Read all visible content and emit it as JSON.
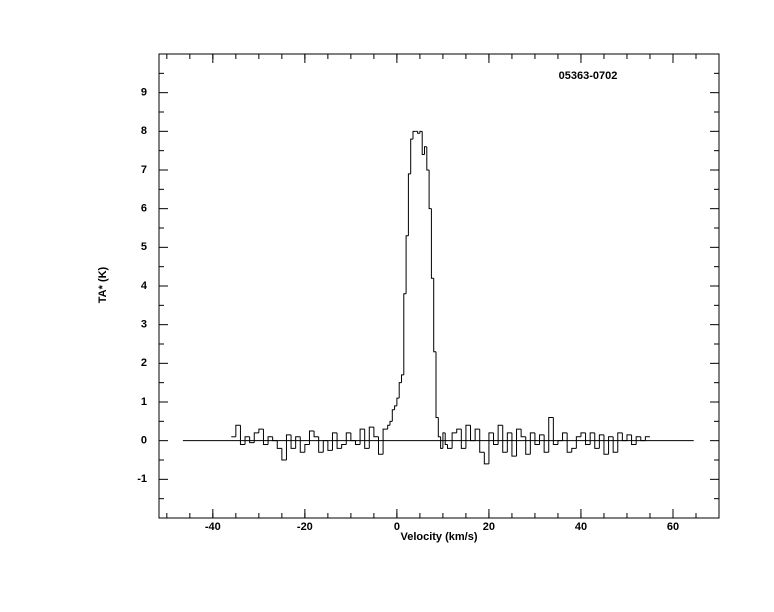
{
  "chart_data": {
    "type": "step",
    "title": "05363-0702",
    "x_label": "Velocity (km/s)",
    "y_label": "TA* (K)",
    "color": "#000000",
    "xlim": [
      -51.7,
      70
    ],
    "ylim": [
      -2,
      10
    ],
    "xticks": [
      -40,
      -20,
      0,
      20,
      40,
      60
    ],
    "yticks": [
      -1,
      0,
      1,
      2,
      3,
      4,
      5,
      6,
      7,
      8,
      9
    ],
    "baseline": {
      "x": [
        -46.5,
        64.5
      ],
      "y": 0
    },
    "x": [
      -36,
      -35,
      -34,
      -33,
      -32,
      -31,
      -30,
      -29,
      -28,
      -27,
      -26,
      -25,
      -24,
      -23,
      -22,
      -21,
      -20,
      -19,
      -18,
      -17,
      -16,
      -15,
      -14,
      -13,
      -12,
      -11,
      -10,
      -9,
      -8,
      -7,
      -6,
      -5,
      -4,
      -3,
      -2,
      -1.5,
      -1,
      -0.5,
      0,
      0.5,
      1,
      1.5,
      2,
      2.5,
      3,
      3.5,
      4,
      4.5,
      5,
      5.5,
      6,
      6.5,
      7,
      7.5,
      8,
      8.5,
      9,
      9.5,
      10,
      10.5,
      11,
      12,
      13,
      14,
      15,
      16,
      17,
      18,
      19,
      20,
      21,
      22,
      23,
      24,
      25,
      26,
      27,
      28,
      29,
      30,
      31,
      32,
      33,
      34,
      35,
      36,
      37,
      38,
      39,
      40,
      41,
      42,
      43,
      44,
      45,
      46,
      47,
      48,
      49,
      50,
      51,
      52,
      53,
      54
    ],
    "values": [
      0.1,
      0.4,
      -0.1,
      0.1,
      -0.05,
      0.2,
      0.3,
      -0.1,
      0.1,
      0.0,
      -0.2,
      -0.5,
      0.15,
      -0.2,
      0.1,
      -0.3,
      -0.1,
      0.25,
      0.1,
      -0.3,
      0.0,
      -0.25,
      0.2,
      -0.2,
      -0.1,
      0.2,
      0.0,
      -0.1,
      0.3,
      -0.2,
      0.35,
      0.1,
      -0.35,
      0.3,
      0.4,
      0.5,
      0.8,
      0.9,
      1.1,
      1.5,
      1.7,
      3.8,
      5.3,
      6.9,
      7.8,
      8.0,
      8.0,
      7.95,
      8.0,
      7.4,
      7.6,
      7.0,
      6.0,
      4.2,
      2.3,
      0.6,
      0.1,
      -0.2,
      0.2,
      -0.1,
      -0.2,
      0.2,
      0.3,
      -0.2,
      0.4,
      0.0,
      0.3,
      -0.3,
      -0.6,
      0.2,
      -0.1,
      0.4,
      -0.3,
      0.2,
      -0.4,
      0.3,
      0.1,
      -0.35,
      0.2,
      -0.1,
      0.15,
      -0.3,
      0.6,
      -0.1,
      0.0,
      0.2,
      -0.3,
      -0.2,
      0.1,
      0.2,
      -0.1,
      0.2,
      -0.2,
      0.15,
      -0.35,
      0.1,
      -0.3,
      0.2,
      0.0,
      0.15,
      -0.1,
      0.1,
      0.0,
      0.1
    ]
  }
}
